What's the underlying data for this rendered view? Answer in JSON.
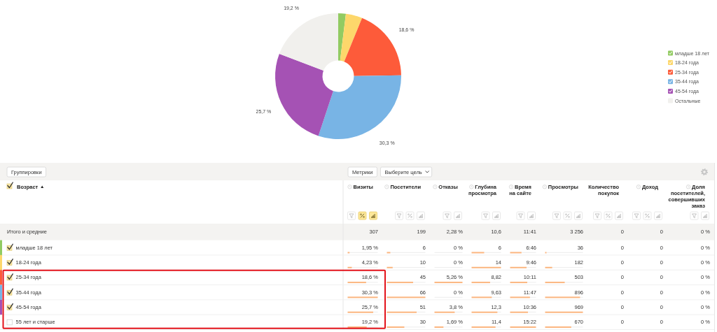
{
  "chart_data": [
    {
      "type": "donut",
      "categories": [
        "младше 18 лет",
        "18-24 года",
        "25-34 года",
        "35-44 года",
        "45-54 года",
        "Остальные"
      ],
      "values": [
        1.95,
        4.23,
        18.6,
        30.3,
        25.7,
        19.2
      ],
      "colors": [
        "#92cb62",
        "#fdd76b",
        "#fd5b3a",
        "#78b4e5",
        "#a552b4",
        "#f1f0ed"
      ],
      "value_labels": [
        null,
        null,
        "18,6 %",
        "30,3 %",
        "25,7 %",
        "19,2 %"
      ],
      "legend": "right"
    },
    {
      "type": "other",
      "ylabel": "Возраст",
      "categories": [
        "младше 18 лет",
        "18-24 года",
        "25-34 года",
        "35-44 года",
        "45-54 года",
        "55 лет и старше"
      ],
      "series": [
        {
          "color": "#fbb57f",
          "values": [
            1.95,
            4.23,
            18.6,
            30.3,
            25.7,
            19.2
          ],
          "value_labels": [
            "1,95 %",
            "4,23 %",
            "18,6 %",
            "30,3 %",
            "25,7 %",
            "19,2 %"
          ]
        },
        {
          "color": "#fbb57f",
          "values": [
            6,
            10,
            45,
            66,
            51,
            30
          ],
          "value_labels": [
            "6",
            "10",
            "45",
            "66",
            "51",
            "30"
          ]
        },
        {
          "color": "#fbb57f",
          "values": [
            0,
            0,
            5.26,
            0,
            3.8,
            1.69
          ],
          "value_labels": [
            "0 %",
            "0 %",
            "5,26 %",
            "0 %",
            "3,8 %",
            "1,69 %"
          ]
        },
        {
          "color": "#fbb57f",
          "values": [
            6,
            14,
            8.82,
            9.63,
            12.3,
            11.4
          ],
          "value_labels": [
            "6",
            "14",
            "8,82",
            "9,63",
            "12,3",
            "11,4"
          ]
        },
        {
          "color": "#fbb57f",
          "values": [
            6.77,
            9.77,
            10.18,
            11.78,
            10.6,
            15.37
          ],
          "value_labels": [
            "6:46",
            "9:46",
            "10:11",
            "11:47",
            "10:36",
            "15:22"
          ]
        },
        {
          "color": "#fbb57f",
          "values": [
            36,
            182,
            503,
            896,
            969,
            670
          ],
          "value_labels": [
            "36",
            "182",
            "503",
            "896",
            "969",
            "670"
          ]
        },
        {
          "values": [
            0,
            0,
            0,
            0,
            0,
            0
          ],
          "value_labels": [
            "0",
            "0",
            "0",
            "0",
            "0",
            "0"
          ]
        },
        {
          "values": [
            0,
            0,
            0,
            0,
            0,
            0
          ],
          "value_labels": [
            "0",
            "0",
            "0",
            "0",
            "0",
            "0"
          ]
        },
        {
          "values": [
            0,
            0,
            0,
            0,
            0,
            0
          ],
          "value_labels": [
            "0 %",
            "0 %",
            "0 %",
            "0 %",
            "0 %",
            "0 %"
          ]
        }
      ],
      "totals": [
        "307",
        "199",
        "2,28 %",
        "10,6",
        "11:41",
        "3 256",
        "0",
        "0",
        "0 %"
      ],
      "annotations": [
        "Группировки",
        "Метрики",
        "Выберите цель",
        "Итого и средние",
        "Визиты",
        "Посетители",
        "Отказы",
        "Глубина просмотра",
        "Время на сайте",
        "Просмотры",
        "Количество покупок",
        "Доход",
        "Доля посетителей, совершивших заказ"
      ]
    }
  ]
}
